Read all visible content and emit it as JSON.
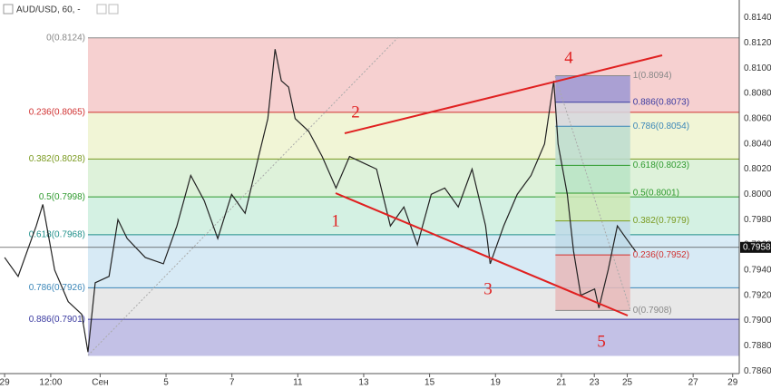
{
  "chart_data": {
    "type": "line",
    "title": "AUD/USD, 60, -",
    "x": [
      0,
      0.41,
      0.96,
      1.16,
      1.52,
      1.93,
      2.34,
      2.53,
      2.75,
      3.17,
      3.44,
      3.72,
      4.27,
      4.82,
      5.23,
      5.65,
      6.06,
      6.47,
      6.89,
      7.3,
      7.71,
      7.99,
      8.21,
      8.4,
      8.62,
      8.82,
      9.23,
      9.64,
      10.06,
      10.47,
      10.88,
      11.29,
      11.71,
      12.12,
      12.53,
      12.95,
      13.36,
      13.77,
      14.19,
      14.6,
      14.74,
      15.15,
      15.56,
      15.98,
      16.39,
      16.67,
      16.8,
      17.08,
      17.27,
      17.49,
      17.91,
      18.04,
      18.32,
      18.6,
      18.87,
      19.15
    ],
    "series": [
      {
        "name": "AUD/USD",
        "color": "#222222",
        "values": [
          0.795,
          0.7935,
          0.7975,
          0.7992,
          0.794,
          0.7915,
          0.7905,
          0.7875,
          0.793,
          0.7935,
          0.798,
          0.7965,
          0.795,
          0.7945,
          0.7975,
          0.8015,
          0.7995,
          0.7965,
          0.8,
          0.7985,
          0.803,
          0.806,
          0.8115,
          0.809,
          0.8085,
          0.806,
          0.805,
          0.803,
          0.8005,
          0.803,
          0.8025,
          0.802,
          0.7975,
          0.799,
          0.796,
          0.8,
          0.8005,
          0.799,
          0.802,
          0.7975,
          0.7945,
          0.7975,
          0.8,
          0.8015,
          0.804,
          0.809,
          0.804,
          0.8,
          0.7955,
          0.792,
          0.7925,
          0.791,
          0.794,
          0.7975,
          0.7965,
          0.7955
        ]
      }
    ],
    "xlim": [
      -0.14,
      22.3
    ],
    "ylim": [
      0.7858,
      0.8154
    ],
    "xticks": [
      {
        "value": 0,
        "label": "29"
      },
      {
        "value": 1.4,
        "label": "12:00"
      },
      {
        "value": 2.9,
        "label": "Сен"
      },
      {
        "value": 4.9,
        "label": "5"
      },
      {
        "value": 6.9,
        "label": "7"
      },
      {
        "value": 8.9,
        "label": "11"
      },
      {
        "value": 10.9,
        "label": "13"
      },
      {
        "value": 12.9,
        "label": "15"
      },
      {
        "value": 14.9,
        "label": "19"
      },
      {
        "value": 16.9,
        "label": "21"
      },
      {
        "value": 17.9,
        "label": "23"
      },
      {
        "value": 18.9,
        "label": "25"
      },
      {
        "value": 20.9,
        "label": "27"
      },
      {
        "value": 22.1,
        "label": "29"
      }
    ],
    "yticks": [
      {
        "value": 0.786,
        "label": "0.7860"
      },
      {
        "value": 0.788,
        "label": "0.7880"
      },
      {
        "value": 0.79,
        "label": "0.7900"
      },
      {
        "value": 0.792,
        "label": "0.7920"
      },
      {
        "value": 0.794,
        "label": "0.7940"
      },
      {
        "value": 0.796,
        "label": "0.7960"
      },
      {
        "value": 0.798,
        "label": "0.7980"
      },
      {
        "value": 0.8,
        "label": "0.8000"
      },
      {
        "value": 0.802,
        "label": "0.8020"
      },
      {
        "value": 0.804,
        "label": "0.8040"
      },
      {
        "value": 0.806,
        "label": "0.8060"
      },
      {
        "value": 0.808,
        "label": "0.8080"
      },
      {
        "value": 0.81,
        "label": "0.8100"
      },
      {
        "value": 0.812,
        "label": "0.8120"
      },
      {
        "value": 0.814,
        "label": "0.8140"
      }
    ],
    "last_price": {
      "value": 0.7958,
      "label": "0.7958"
    },
    "fib_left": {
      "x_range": [
        2.53,
        22.3
      ],
      "bottom": 0.7872,
      "levels": [
        {
          "value": 0.8124,
          "label": "0(0.8124)",
          "color": "#888888",
          "fill": "#f5c8c8"
        },
        {
          "value": 0.8065,
          "label": "0.236(0.8065)",
          "color": "#d03030",
          "fill": "#eef3cf"
        },
        {
          "value": 0.8028,
          "label": "0.382(0.8028)",
          "color": "#7a9a20",
          "fill": "#d8f0d3"
        },
        {
          "value": 0.7998,
          "label": "0.5(0.7998)",
          "color": "#2e9a2e",
          "fill": "#cdeede"
        },
        {
          "value": 0.7968,
          "label": "0.618(0.7968)",
          "color": "#20908a",
          "fill": "#d0e6f3"
        },
        {
          "value": 0.7926,
          "label": "0.786(0.7926)",
          "color": "#3a86b8",
          "fill": "#e4e4e4"
        },
        {
          "value": 0.7901,
          "label": "0.886(0.7901)",
          "color": "#3a3aa0",
          "fill": "#b8b6e2"
        }
      ]
    },
    "fib_right": {
      "x_range": [
        16.72,
        18.99
      ],
      "levels": [
        {
          "value": 0.8094,
          "label": "1(0.8094)",
          "color": "#888888",
          "fill": "#9c98d4"
        },
        {
          "value": 0.8073,
          "label": "0.886(0.8073)",
          "color": "#3a3aa0",
          "fill": "#d6d6de"
        },
        {
          "value": 0.8054,
          "label": "0.786(0.8054)",
          "color": "#3a86b8",
          "fill": "#bcdccf"
        },
        {
          "value": 0.8023,
          "label": "0.618(0.8023)",
          "color": "#2e9a2e",
          "fill": "#b8e4c4"
        },
        {
          "value": 0.8001,
          "label": "0.5(0.8001)",
          "color": "#2e9a2e",
          "fill": "#cde8b5"
        },
        {
          "value": 0.7979,
          "label": "0.382(0.7979)",
          "color": "#7a9a20",
          "fill": "#bfdbe8"
        },
        {
          "value": 0.7952,
          "label": "0.236(0.7952)",
          "color": "#d03030",
          "fill": "#e8b9b9"
        },
        {
          "value": 0.7908,
          "label": "0(0.7908)",
          "color": "#888888",
          "fill": "none"
        }
      ]
    },
    "annotations": [
      "1",
      "2",
      "3",
      "4",
      "5"
    ]
  }
}
